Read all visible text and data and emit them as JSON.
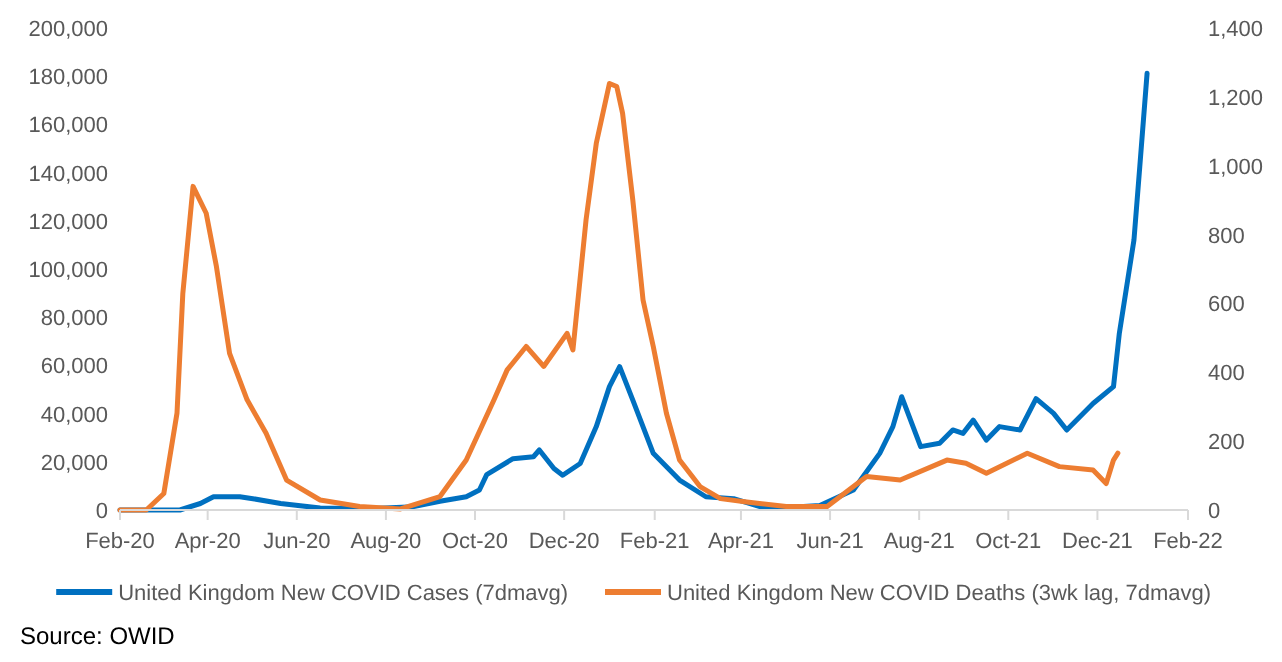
{
  "chart_data": {
    "type": "line",
    "xlim": [
      "2020-02-01",
      "2022-02-01"
    ],
    "xticks": [
      {
        "value": "2020-02-01",
        "label": "Feb-20"
      },
      {
        "value": "2020-04-01",
        "label": "Apr-20"
      },
      {
        "value": "2020-06-01",
        "label": "Jun-20"
      },
      {
        "value": "2020-08-01",
        "label": "Aug-20"
      },
      {
        "value": "2020-10-01",
        "label": "Oct-20"
      },
      {
        "value": "2020-12-01",
        "label": "Dec-20"
      },
      {
        "value": "2021-02-01",
        "label": "Feb-21"
      },
      {
        "value": "2021-04-01",
        "label": "Apr-21"
      },
      {
        "value": "2021-06-01",
        "label": "Jun-21"
      },
      {
        "value": "2021-08-01",
        "label": "Aug-21"
      },
      {
        "value": "2021-10-01",
        "label": "Oct-21"
      },
      {
        "value": "2021-12-01",
        "label": "Dec-21"
      },
      {
        "value": "2022-02-01",
        "label": "Feb-22"
      }
    ],
    "ylim": [
      0,
      200000
    ],
    "yticks": [
      {
        "value": 0,
        "label": "0"
      },
      {
        "value": 20000,
        "label": "20,000"
      },
      {
        "value": 40000,
        "label": "40,000"
      },
      {
        "value": 60000,
        "label": "60,000"
      },
      {
        "value": 80000,
        "label": "80,000"
      },
      {
        "value": 100000,
        "label": "100,000"
      },
      {
        "value": 120000,
        "label": "120,000"
      },
      {
        "value": 140000,
        "label": "140,000"
      },
      {
        "value": 160000,
        "label": "160,000"
      },
      {
        "value": 180000,
        "label": "180,000"
      },
      {
        "value": 200000,
        "label": "200,000"
      }
    ],
    "y2lim": [
      0,
      1400
    ],
    "y2ticks": [
      {
        "value": 0,
        "label": "0"
      },
      {
        "value": 200,
        "label": "200"
      },
      {
        "value": 400,
        "label": "400"
      },
      {
        "value": 600,
        "label": "600"
      },
      {
        "value": 800,
        "label": "800"
      },
      {
        "value": 1000,
        "label": "1,000"
      },
      {
        "value": 1200,
        "label": "1,200"
      },
      {
        "value": 1400,
        "label": "1,400"
      }
    ],
    "grid": false,
    "legend": "bottom",
    "marker": "none",
    "line_style": "solid",
    "annotations": [
      "Source: OWID"
    ],
    "series": [
      {
        "name": "United Kingdom New COVID Cases (7dmavg)",
        "color": "#0070c0",
        "x": [
          "2020-02-01",
          "2020-03-13",
          "2020-03-27",
          "2020-04-05",
          "2020-04-23",
          "2020-05-02",
          "2020-05-21",
          "2020-06-17",
          "2020-07-23",
          "2020-08-20",
          "2020-09-07",
          "2020-09-25",
          "2020-10-04",
          "2020-10-09",
          "2020-10-27",
          "2020-11-10",
          "2020-11-14",
          "2020-11-24",
          "2020-11-30",
          "2020-12-12",
          "2020-12-23",
          "2021-01-01",
          "2021-01-08",
          "2021-01-17",
          "2021-01-31",
          "2021-02-18",
          "2021-03-08",
          "2021-03-27",
          "2021-04-14",
          "2021-05-11",
          "2021-05-25",
          "2021-06-17",
          "2021-07-05",
          "2021-07-14",
          "2021-07-20",
          "2021-08-02",
          "2021-08-15",
          "2021-08-24",
          "2021-08-31",
          "2021-09-07",
          "2021-09-16",
          "2021-09-25",
          "2021-10-09",
          "2021-10-20",
          "2021-11-01",
          "2021-11-10",
          "2021-11-28",
          "2021-12-12",
          "2021-12-16",
          "2021-12-26",
          "2021-12-30",
          "2022-01-04"
        ],
        "values": [
          0,
          0,
          2700,
          5500,
          5500,
          4700,
          2700,
          800,
          600,
          1400,
          3600,
          5500,
          8300,
          14700,
          21300,
          22100,
          24900,
          17200,
          14400,
          19300,
          34600,
          51200,
          59500,
          45600,
          23500,
          12400,
          5500,
          4700,
          1400,
          1400,
          1900,
          8300,
          23500,
          34600,
          47000,
          26300,
          27700,
          33200,
          31800,
          37300,
          29000,
          34600,
          33200,
          46200,
          40100,
          33200,
          44200,
          51200,
          73300,
          112000,
          142500,
          181200
        ]
      },
      {
        "name": "United Kingdom New COVID Deaths (3wk lag, 7dmavg)",
        "color": "#ed7d31",
        "axis": "y2",
        "x": [
          "2020-02-01",
          "2020-02-19",
          "2020-03-02",
          "2020-03-11",
          "2020-03-15",
          "2020-03-22",
          "2020-03-31",
          "2020-04-07",
          "2020-04-16",
          "2020-04-28",
          "2020-05-11",
          "2020-05-25",
          "2020-06-17",
          "2020-07-14",
          "2020-08-11",
          "2020-09-07",
          "2020-09-25",
          "2020-10-14",
          "2020-10-23",
          "2020-11-05",
          "2020-11-17",
          "2020-12-03",
          "2020-12-07",
          "2020-12-16",
          "2020-12-23",
          "2021-01-01",
          "2021-01-06",
          "2021-01-10",
          "2021-01-17",
          "2021-01-24",
          "2021-01-31",
          "2021-02-09",
          "2021-02-18",
          "2021-03-04",
          "2021-03-18",
          "2021-04-05",
          "2021-05-02",
          "2021-05-30",
          "2021-06-26",
          "2021-07-19",
          "2021-08-20",
          "2021-09-02",
          "2021-09-16",
          "2021-10-14",
          "2021-11-05",
          "2021-11-28",
          "2021-12-07",
          "2021-12-12",
          "2021-12-15"
        ],
        "values": [
          0,
          0,
          48,
          281,
          629,
          940,
          862,
          707,
          455,
          320,
          223,
          87,
          29,
          10,
          3,
          39,
          145,
          320,
          407,
          475,
          417,
          513,
          465,
          843,
          1065,
          1239,
          1230,
          1152,
          900,
          610,
          475,
          281,
          145,
          68,
          33,
          23,
          10,
          10,
          97,
          87,
          145,
          136,
          107,
          165,
          126,
          116,
          77,
          145,
          165
        ]
      }
    ]
  }
}
